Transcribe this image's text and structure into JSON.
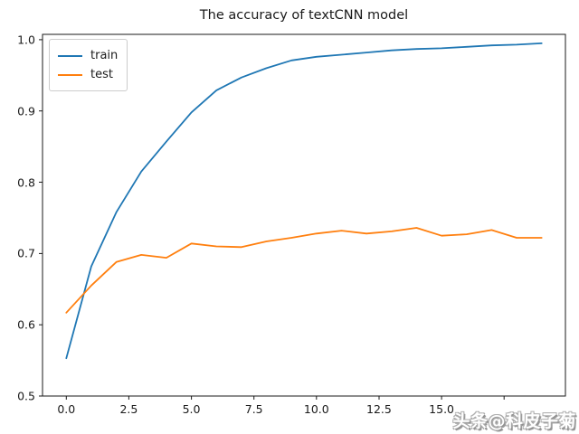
{
  "figure": {
    "background": "#ffffff",
    "spine_color": "#1a1a1a",
    "text_color": "#1a1a1a"
  },
  "chart_data": {
    "type": "line",
    "title": "The accuracy of textCNN model",
    "xlabel": "",
    "ylabel": "",
    "grid": false,
    "x": [
      0,
      1,
      2,
      3,
      4,
      5,
      6,
      7,
      8,
      9,
      10,
      11,
      12,
      13,
      14,
      15,
      16,
      17,
      18,
      19
    ],
    "series": [
      {
        "name": "train",
        "color": "#1f77b4",
        "values": [
          0.553,
          0.682,
          0.758,
          0.815,
          0.857,
          0.898,
          0.929,
          0.947,
          0.96,
          0.971,
          0.976,
          0.979,
          0.982,
          0.985,
          0.987,
          0.988,
          0.99,
          0.992,
          0.993,
          0.995
        ]
      },
      {
        "name": "test",
        "color": "#ff7f0e",
        "values": [
          0.617,
          0.655,
          0.688,
          0.698,
          0.694,
          0.714,
          0.71,
          0.709,
          0.717,
          0.722,
          0.728,
          0.732,
          0.728,
          0.731,
          0.736,
          0.725,
          0.727,
          0.733,
          0.722,
          0.722
        ]
      }
    ],
    "xlim": [
      -0.95,
      19.95
    ],
    "ylim": [
      0.5,
      1.0075
    ],
    "xticks": {
      "values": [
        0,
        2.5,
        5,
        7.5,
        10,
        12.5,
        15,
        17.5
      ],
      "labels": [
        "0.0",
        "2.5",
        "5.0",
        "7.5",
        "10.0",
        "12.5",
        "15.0",
        ""
      ]
    },
    "yticks": {
      "values": [
        0.5,
        0.6,
        0.7,
        0.8,
        0.9,
        1.0
      ],
      "labels": [
        "0.5",
        "0.6",
        "0.7",
        "0.8",
        "0.9",
        "1.0"
      ]
    },
    "legend": {
      "position": "upper left",
      "entries": [
        "train",
        "test"
      ]
    }
  },
  "watermark": {
    "text": "头条@科皮子菊"
  }
}
